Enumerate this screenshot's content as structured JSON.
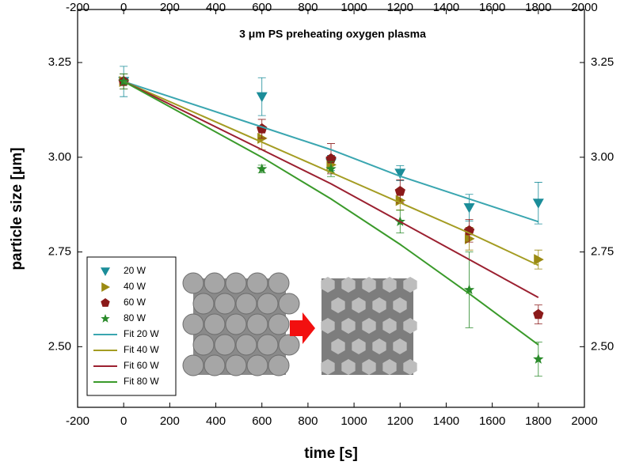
{
  "chart_data": {
    "type": "scatter",
    "title": "3 μm PS preheating oxygen plasma",
    "x_label": "time [s]",
    "y_label": "particle size [μm]",
    "x": [
      0,
      600,
      900,
      1200,
      1500,
      1800
    ],
    "xlim": [
      -200,
      2000
    ],
    "xticks": [
      -200,
      0,
      200,
      400,
      600,
      800,
      1000,
      1200,
      1400,
      1600,
      1800,
      2000
    ],
    "ylim": [
      2.34,
      3.39
    ],
    "yticks": [
      {
        "value": 2.5,
        "label": "2.50"
      },
      2.75,
      {
        "value": 3.0,
        "label": "3.00"
      },
      3.25
    ],
    "series": [
      {
        "name": "20 W",
        "color": "#1b8d99",
        "marker": "triangle-down",
        "values": [
          3.2,
          3.16,
          2.985,
          2.958,
          2.867,
          2.879
        ],
        "errors": [
          0.04,
          0.05,
          0.02,
          0.02,
          0.035,
          0.055
        ]
      },
      {
        "name": "40 W",
        "color": "#9b8a12",
        "marker": "triangle-right",
        "values": [
          3.2,
          3.05,
          2.98,
          2.886,
          2.785,
          2.73
        ],
        "errors": [
          0.02,
          0.03,
          0.02,
          0.025,
          0.03,
          0.025
        ]
      },
      {
        "name": "60 W",
        "color": "#8b1a1a",
        "marker": "pentagon",
        "values": [
          3.2,
          3.075,
          2.996,
          2.91,
          2.806,
          2.585
        ],
        "errors": [
          0.02,
          0.025,
          0.04,
          0.03,
          0.03,
          0.025
        ]
      },
      {
        "name": "80 W",
        "color": "#2a8a2a",
        "marker": "star",
        "values": [
          3.2,
          2.969,
          2.969,
          2.83,
          2.65,
          2.467
        ],
        "errors": [
          0.02,
          0.01,
          0.02,
          0.03,
          0.1,
          0.045
        ]
      },
      {
        "name": "Fit 20 W",
        "color": "#3aa6b0",
        "line": true,
        "values": [
          3.2,
          3.08,
          3.02,
          2.95,
          2.89,
          2.83
        ]
      },
      {
        "name": "Fit 40 W",
        "color": "#a49c22",
        "line": true,
        "values": [
          3.2,
          3.04,
          2.96,
          2.88,
          2.8,
          2.715
        ]
      },
      {
        "name": "Fit 60 W",
        "color": "#9b2030",
        "line": true,
        "values": [
          3.2,
          3.02,
          2.93,
          2.83,
          2.73,
          2.63
        ]
      },
      {
        "name": "Fit 80 W",
        "color": "#3a9a2a",
        "line": true,
        "values": [
          3.2,
          3.0,
          2.89,
          2.77,
          2.64,
          2.505
        ]
      }
    ]
  }
}
